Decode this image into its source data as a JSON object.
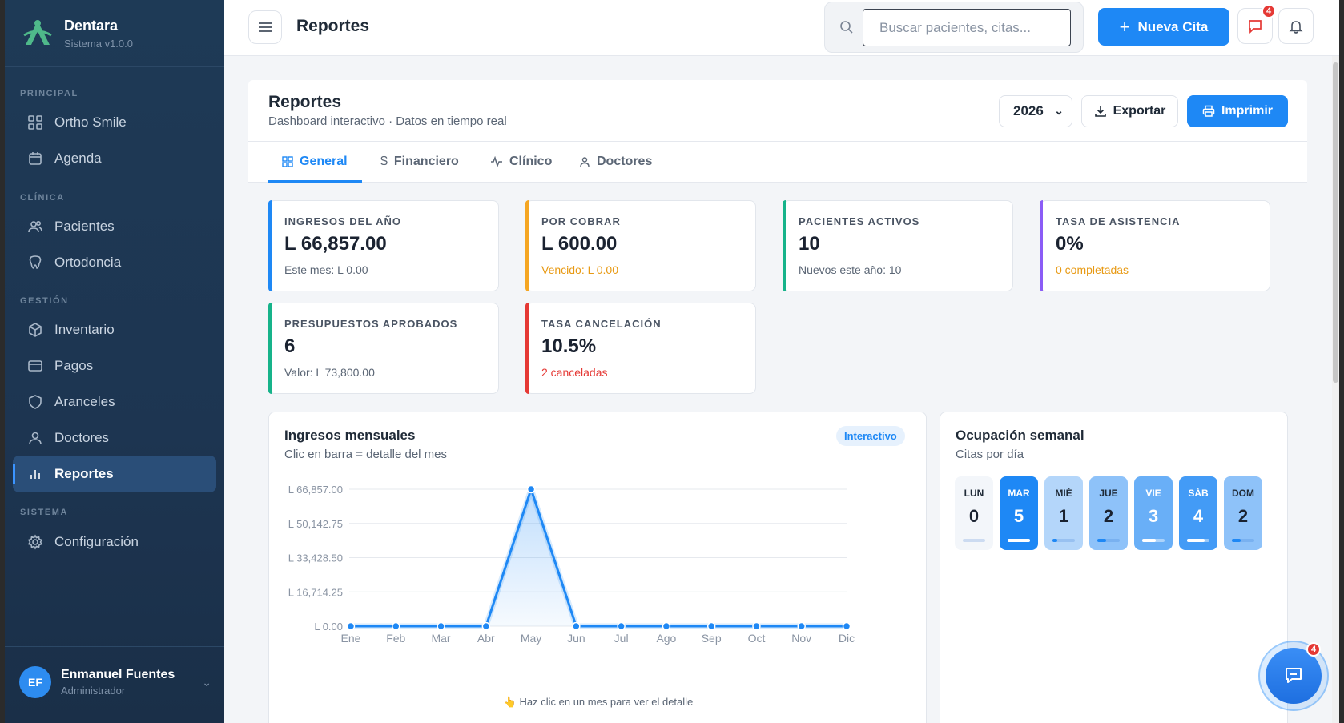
{
  "sidebar": {
    "brand": {
      "name": "Dentara",
      "version": "Sistema v1.0.0"
    },
    "sections": [
      "PRINCIPAL",
      "CLÍNICA",
      "GESTIÓN",
      "SISTEMA"
    ],
    "items": [
      {
        "label": "Ortho Smile",
        "icon": "grid-icon"
      },
      {
        "label": "Agenda",
        "icon": "calendar-icon"
      },
      {
        "label": "Pacientes",
        "icon": "users-icon"
      },
      {
        "label": "Ortodoncia",
        "icon": "tooth-icon"
      },
      {
        "label": "Inventario",
        "icon": "box-icon"
      },
      {
        "label": "Pagos",
        "icon": "credit-card-icon"
      },
      {
        "label": "Aranceles",
        "icon": "shield-icon"
      },
      {
        "label": "Doctores",
        "icon": "user-icon"
      },
      {
        "label": "Reportes",
        "icon": "bar-chart-icon",
        "active": true
      },
      {
        "label": "Configuración",
        "icon": "gear-icon"
      }
    ],
    "user": {
      "initials": "EF",
      "name": "Enmanuel Fuentes",
      "role": "Administrador"
    }
  },
  "topbar": {
    "title": "Reportes",
    "search_placeholder": "Buscar pacientes, citas...",
    "new_button": "Nueva Cita",
    "messages_badge": "4"
  },
  "header": {
    "title": "Reportes",
    "subtitle": "Dashboard interactivo · Datos en tiempo real",
    "year": "2026",
    "export_label": "Exportar",
    "print_label": "Imprimir"
  },
  "tabs": [
    {
      "label": "General",
      "active": true
    },
    {
      "label": "Financiero"
    },
    {
      "label": "Clínico"
    },
    {
      "label": "Doctores"
    }
  ],
  "cards": [
    {
      "label": "INGRESOS DEL AÑO",
      "value": "L 66,857.00",
      "foot": "Este mes: L 0.00",
      "accent": "#1e88f5",
      "foot_color": "#5b6675"
    },
    {
      "label": "POR COBRAR",
      "value": "L 600.00",
      "foot": "Vencido: L 0.00",
      "accent": "#f5a623",
      "foot_color": "#e89a14"
    },
    {
      "label": "PACIENTES ACTIVOS",
      "value": "10",
      "foot": "Nuevos este año: 10",
      "accent": "#16b38a",
      "foot_color": "#5b6675"
    },
    {
      "label": "TASA DE ASISTENCIA",
      "value": "0%",
      "foot": "0 completadas",
      "accent": "#8b5cf6",
      "foot_color": "#e89a14"
    },
    {
      "label": "PRESUPUESTOS APROBADOS",
      "value": "6",
      "foot": "Valor: L 73,800.00",
      "accent": "#16b38a",
      "foot_color": "#5b6675"
    },
    {
      "label": "TASA CANCELACIÓN",
      "value": "10.5%",
      "foot": "2 canceladas",
      "accent": "#e53935",
      "foot_color": "#e53935"
    }
  ],
  "monthly": {
    "title": "Ingresos mensuales",
    "subtitle": "Clic en barra = detalle del mes",
    "pill": "Interactivo",
    "hint": "👆 Haz clic en un mes para ver el detalle"
  },
  "chart_data": {
    "type": "area",
    "categories": [
      "Ene",
      "Feb",
      "Mar",
      "Abr",
      "May",
      "Jun",
      "Jul",
      "Ago",
      "Sep",
      "Oct",
      "Nov",
      "Dic"
    ],
    "values": [
      0,
      0,
      0,
      0,
      66857,
      0,
      0,
      0,
      0,
      0,
      0,
      0
    ],
    "yticks": [
      "L 0.00",
      "L 16,714.25",
      "L 33,428.50",
      "L 50,142.75",
      "L 66,857.00"
    ],
    "ylim": [
      0,
      66857
    ],
    "grid": true,
    "color": "#1e88f5"
  },
  "weekly": {
    "title": "Ocupación semanal",
    "subtitle": "Citas por día",
    "days": [
      {
        "name": "LUN",
        "count": "0",
        "level": 0
      },
      {
        "name": "MAR",
        "count": "5",
        "level": 1.0
      },
      {
        "name": "MIÉ",
        "count": "1",
        "level": 0.2
      },
      {
        "name": "JUE",
        "count": "2",
        "level": 0.4
      },
      {
        "name": "VIE",
        "count": "3",
        "level": 0.6
      },
      {
        "name": "SÁB",
        "count": "4",
        "level": 0.8
      },
      {
        "name": "DOM",
        "count": "2",
        "level": 0.4
      }
    ]
  },
  "fab": {
    "badge": "4"
  }
}
